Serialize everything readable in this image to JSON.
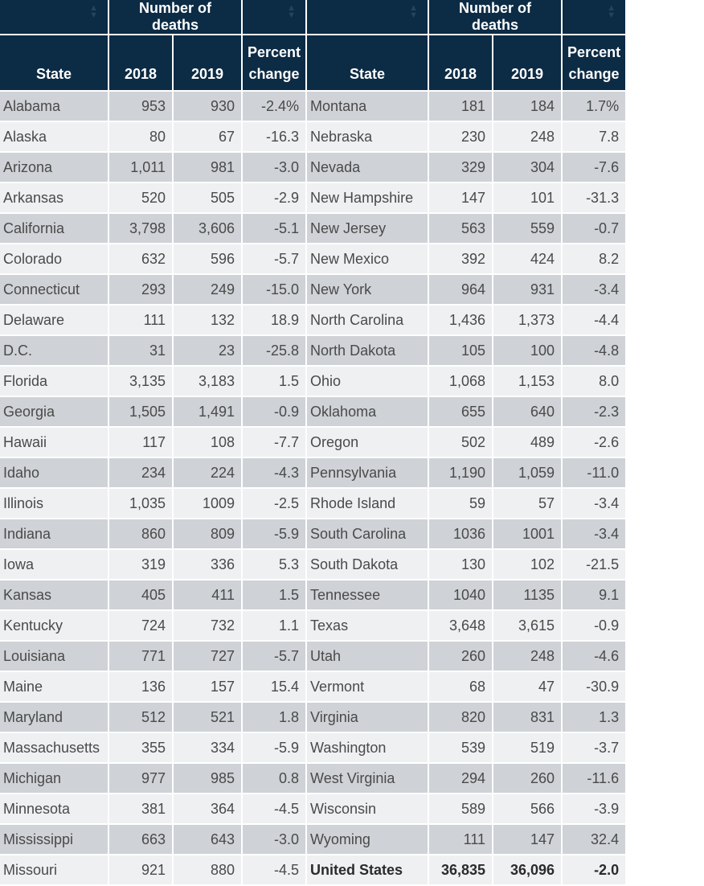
{
  "header": {
    "group_label": "Number of deaths",
    "state": "State",
    "y2018": "2018",
    "y2019": "2019",
    "pct": "Percent change",
    "sort_icon": "sort-icon"
  },
  "colors": {
    "header_bg": "#0c2b45",
    "row_odd": "#cfd2d6",
    "row_even": "#eef0f2"
  },
  "rows": [
    {
      "l": [
        "Alabama",
        "953",
        "930",
        "-2.4%"
      ],
      "r": [
        "Montana",
        "181",
        "184",
        "1.7%"
      ]
    },
    {
      "l": [
        "Alaska",
        "80",
        "67",
        "-16.3"
      ],
      "r": [
        "Nebraska",
        "230",
        "248",
        "7.8"
      ]
    },
    {
      "l": [
        "Arizona",
        "1,011",
        "981",
        "-3.0"
      ],
      "r": [
        "Nevada",
        "329",
        "304",
        "-7.6"
      ]
    },
    {
      "l": [
        "Arkansas",
        "520",
        "505",
        "-2.9"
      ],
      "r": [
        "New Hampshire",
        "147",
        "101",
        "-31.3"
      ]
    },
    {
      "l": [
        "California",
        "3,798",
        "3,606",
        "-5.1"
      ],
      "r": [
        "New Jersey",
        "563",
        "559",
        "-0.7"
      ]
    },
    {
      "l": [
        "Colorado",
        "632",
        "596",
        "-5.7"
      ],
      "r": [
        "New Mexico",
        "392",
        "424",
        "8.2"
      ]
    },
    {
      "l": [
        "Connecticut",
        "293",
        "249",
        "-15.0"
      ],
      "r": [
        "New York",
        "964",
        "931",
        "-3.4"
      ]
    },
    {
      "l": [
        "Delaware",
        "111",
        "132",
        "18.9"
      ],
      "r": [
        "North Carolina",
        "1,436",
        "1,373",
        "-4.4"
      ]
    },
    {
      "l": [
        "D.C.",
        "31",
        "23",
        "-25.8"
      ],
      "r": [
        "North Dakota",
        "105",
        "100",
        "-4.8"
      ]
    },
    {
      "l": [
        "Florida",
        "3,135",
        "3,183",
        "1.5"
      ],
      "r": [
        "Ohio",
        "1,068",
        "1,153",
        "8.0"
      ]
    },
    {
      "l": [
        "Georgia",
        "1,505",
        "1,491",
        "-0.9"
      ],
      "r": [
        "Oklahoma",
        "655",
        "640",
        "-2.3"
      ]
    },
    {
      "l": [
        "Hawaii",
        "117",
        "108",
        "-7.7"
      ],
      "r": [
        "Oregon",
        "502",
        "489",
        "-2.6"
      ]
    },
    {
      "l": [
        "Idaho",
        "234",
        "224",
        "-4.3"
      ],
      "r": [
        "Pennsylvania",
        "1,190",
        "1,059",
        "-11.0"
      ]
    },
    {
      "l": [
        "Illinois",
        "1,035",
        "1009",
        "-2.5"
      ],
      "r": [
        "Rhode Island",
        "59",
        "57",
        "-3.4"
      ]
    },
    {
      "l": [
        "Indiana",
        "860",
        "809",
        "-5.9"
      ],
      "r": [
        "South Carolina",
        "1036",
        "1001",
        "-3.4"
      ]
    },
    {
      "l": [
        "Iowa",
        "319",
        "336",
        "5.3"
      ],
      "r": [
        "South Dakota",
        "130",
        "102",
        "-21.5"
      ]
    },
    {
      "l": [
        "Kansas",
        "405",
        "411",
        "1.5"
      ],
      "r": [
        "Tennessee",
        "1040",
        "1135",
        "9.1"
      ]
    },
    {
      "l": [
        "Kentucky",
        "724",
        "732",
        "1.1"
      ],
      "r": [
        "Texas",
        "3,648",
        "3,615",
        "-0.9"
      ]
    },
    {
      "l": [
        "Louisiana",
        "771",
        "727",
        "-5.7"
      ],
      "r": [
        "Utah",
        "260",
        "248",
        "-4.6"
      ]
    },
    {
      "l": [
        "Maine",
        "136",
        "157",
        "15.4"
      ],
      "r": [
        "Vermont",
        "68",
        "47",
        "-30.9"
      ]
    },
    {
      "l": [
        "Maryland",
        "512",
        "521",
        "1.8"
      ],
      "r": [
        "Virginia",
        "820",
        "831",
        "1.3"
      ]
    },
    {
      "l": [
        "Massachusetts",
        "355",
        "334",
        "-5.9"
      ],
      "r": [
        "Washington",
        "539",
        "519",
        "-3.7"
      ]
    },
    {
      "l": [
        "Michigan",
        "977",
        "985",
        "0.8"
      ],
      "r": [
        "West Virginia",
        "294",
        "260",
        "-11.6"
      ]
    },
    {
      "l": [
        "Minnesota",
        "381",
        "364",
        "-4.5"
      ],
      "r": [
        "Wisconsin",
        "589",
        "566",
        "-3.9"
      ]
    },
    {
      "l": [
        "Mississippi",
        "663",
        "643",
        "-3.0"
      ],
      "r": [
        "Wyoming",
        "111",
        "147",
        "32.4"
      ]
    },
    {
      "l": [
        "Missouri",
        "921",
        "880",
        "-4.5"
      ],
      "r": [
        "United States",
        "36,835",
        "36,096",
        "-2.0"
      ]
    }
  ]
}
